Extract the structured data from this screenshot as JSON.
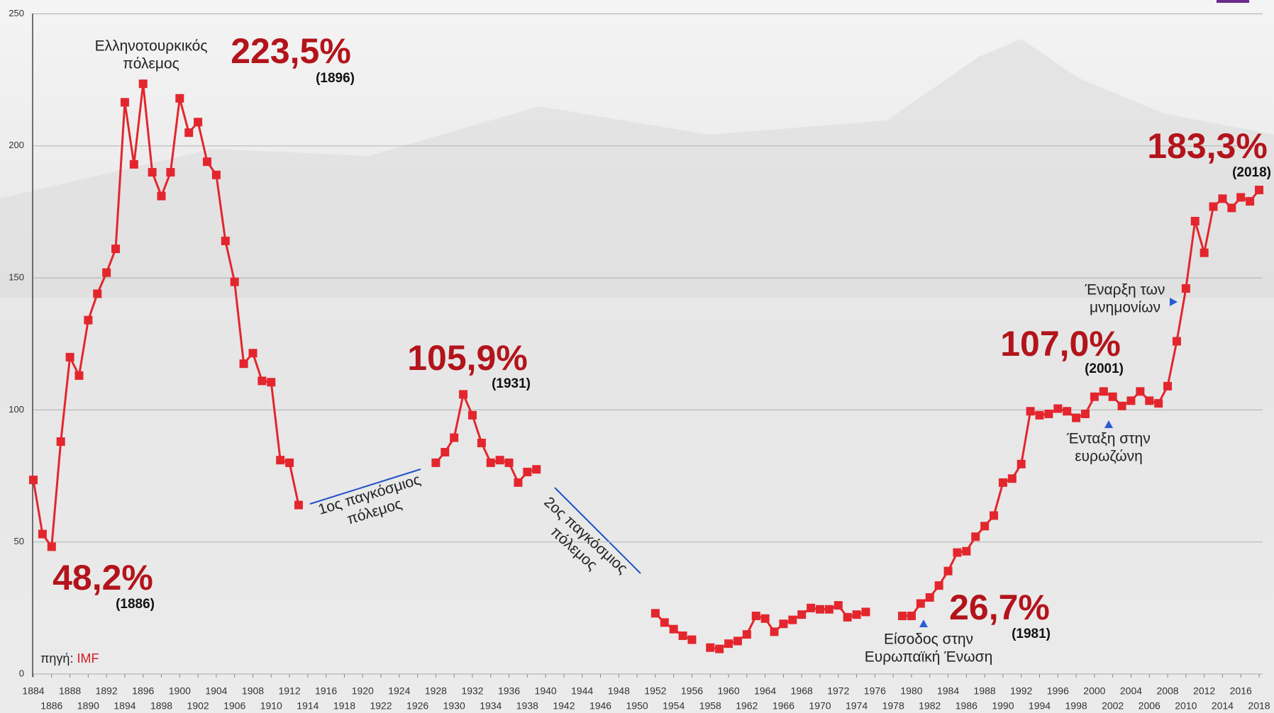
{
  "chart_data": {
    "type": "line",
    "x": [
      1884,
      1885,
      1886,
      1887,
      1888,
      1889,
      1890,
      1891,
      1892,
      1893,
      1894,
      1895,
      1896,
      1897,
      1898,
      1899,
      1900,
      1901,
      1902,
      1903,
      1904,
      1905,
      1906,
      1907,
      1908,
      1909,
      1910,
      1911,
      1912,
      1913,
      1914,
      1915,
      1916,
      1917,
      1918,
      1919,
      1920,
      1921,
      1922,
      1923,
      1924,
      1925,
      1926,
      1927,
      1928,
      1929,
      1930,
      1931,
      1932,
      1933,
      1934,
      1935,
      1936,
      1937,
      1938,
      1939,
      1940,
      1941,
      1942,
      1943,
      1944,
      1945,
      1946,
      1947,
      1948,
      1949,
      1950,
      1951,
      1952,
      1953,
      1954,
      1955,
      1956,
      1957,
      1958,
      1959,
      1960,
      1961,
      1962,
      1963,
      1964,
      1965,
      1966,
      1967,
      1968,
      1969,
      1970,
      1971,
      1972,
      1973,
      1974,
      1975,
      1976,
      1977,
      1978,
      1979,
      1980,
      1981,
      1982,
      1983,
      1984,
      1985,
      1986,
      1987,
      1988,
      1989,
      1990,
      1991,
      1992,
      1993,
      1994,
      1995,
      1996,
      1997,
      1998,
      1999,
      2000,
      2001,
      2002,
      2003,
      2004,
      2005,
      2006,
      2007,
      2008,
      2009,
      2010,
      2011,
      2012,
      2013,
      2014,
      2015,
      2016,
      2017,
      2018
    ],
    "series": [
      {
        "color": "#e3262d",
        "values": [
          73.5,
          53,
          48.2,
          88,
          120,
          113,
          134,
          144,
          152,
          161,
          216.5,
          193,
          223.5,
          190,
          181,
          190,
          218,
          205,
          209,
          194,
          189,
          164,
          148.5,
          117.5,
          121.5,
          111,
          110.5,
          81,
          80,
          64,
          null,
          null,
          null,
          null,
          null,
          null,
          null,
          null,
          null,
          null,
          null,
          null,
          null,
          null,
          80,
          84,
          89.5,
          105.9,
          98,
          87.5,
          80,
          81,
          80,
          72.5,
          76.5,
          77.5,
          null,
          null,
          null,
          null,
          null,
          null,
          null,
          null,
          null,
          null,
          null,
          null,
          23,
          19.5,
          17,
          14.5,
          13,
          null,
          10,
          9.5,
          11.5,
          12.5,
          15,
          22,
          21,
          16,
          19,
          20.5,
          22.5,
          25,
          24.5,
          24.5,
          26,
          21.5,
          22.5,
          23.5,
          null,
          null,
          null,
          22,
          22,
          26.7,
          29,
          33.5,
          39,
          46,
          46.5,
          52,
          56,
          60,
          72.5,
          74,
          79.5,
          99.5,
          98,
          98.5,
          100.5,
          99.5,
          97,
          98.5,
          105,
          107.0,
          105,
          101.5,
          103.5,
          107,
          103.5,
          102.5,
          109,
          126,
          146,
          171.5,
          159.5,
          177,
          180,
          176.5,
          180.5,
          179,
          183.3
        ]
      }
    ],
    "xlim": [
      1884,
      2018
    ],
    "xticks": [
      1884,
      1886,
      1888,
      1890,
      1892,
      1894,
      1896,
      1898,
      1900,
      1902,
      1904,
      1906,
      1908,
      1910,
      1912,
      1914,
      1916,
      1918,
      1920,
      1922,
      1924,
      1926,
      1928,
      1930,
      1932,
      1934,
      1936,
      1938,
      1940,
      1942,
      1944,
      1946,
      1948,
      1950,
      1952,
      1954,
      1956,
      1958,
      1960,
      1962,
      1964,
      1966,
      1968,
      1970,
      1972,
      1974,
      1976,
      1978,
      1980,
      1982,
      1984,
      1986,
      1988,
      1990,
      1992,
      1994,
      1996,
      1998,
      2000,
      2002,
      2004,
      2006,
      2008,
      2010,
      2012,
      2014,
      2016,
      2018
    ],
    "ylim": [
      0,
      250
    ],
    "yticks": [
      0,
      50,
      100,
      150,
      200,
      250
    ],
    "grid": true,
    "callouts": [
      {
        "label": "48,2%",
        "note": "(1886)"
      },
      {
        "label": "223,5%",
        "note": "(1896)"
      },
      {
        "label": "105,9%",
        "note": "(1931)"
      },
      {
        "label": "26,7%",
        "note": "(1981)"
      },
      {
        "label": "107,0%",
        "note": "(2001)"
      },
      {
        "label": "183,3%",
        "note": "(2018)"
      }
    ],
    "events": [
      {
        "lines": [
          "Ελληνοτουρκικός",
          "πόλεμος"
        ]
      },
      {
        "lines": [
          "1ος παγκόσμιος",
          "πόλεμος"
        ]
      },
      {
        "lines": [
          "2ος παγκόσμιος",
          "πόλεμος"
        ]
      },
      {
        "lines": [
          "Είσοδος στην",
          "Ευρωπαϊκή Ένωση"
        ]
      },
      {
        "lines": [
          "Ένταξη στην",
          "ευρωζώνη"
        ]
      },
      {
        "lines": [
          "Έναρξη των",
          "μνημονίων"
        ]
      }
    ],
    "source": {
      "prefix": "πηγή:",
      "name": "IMF"
    }
  }
}
